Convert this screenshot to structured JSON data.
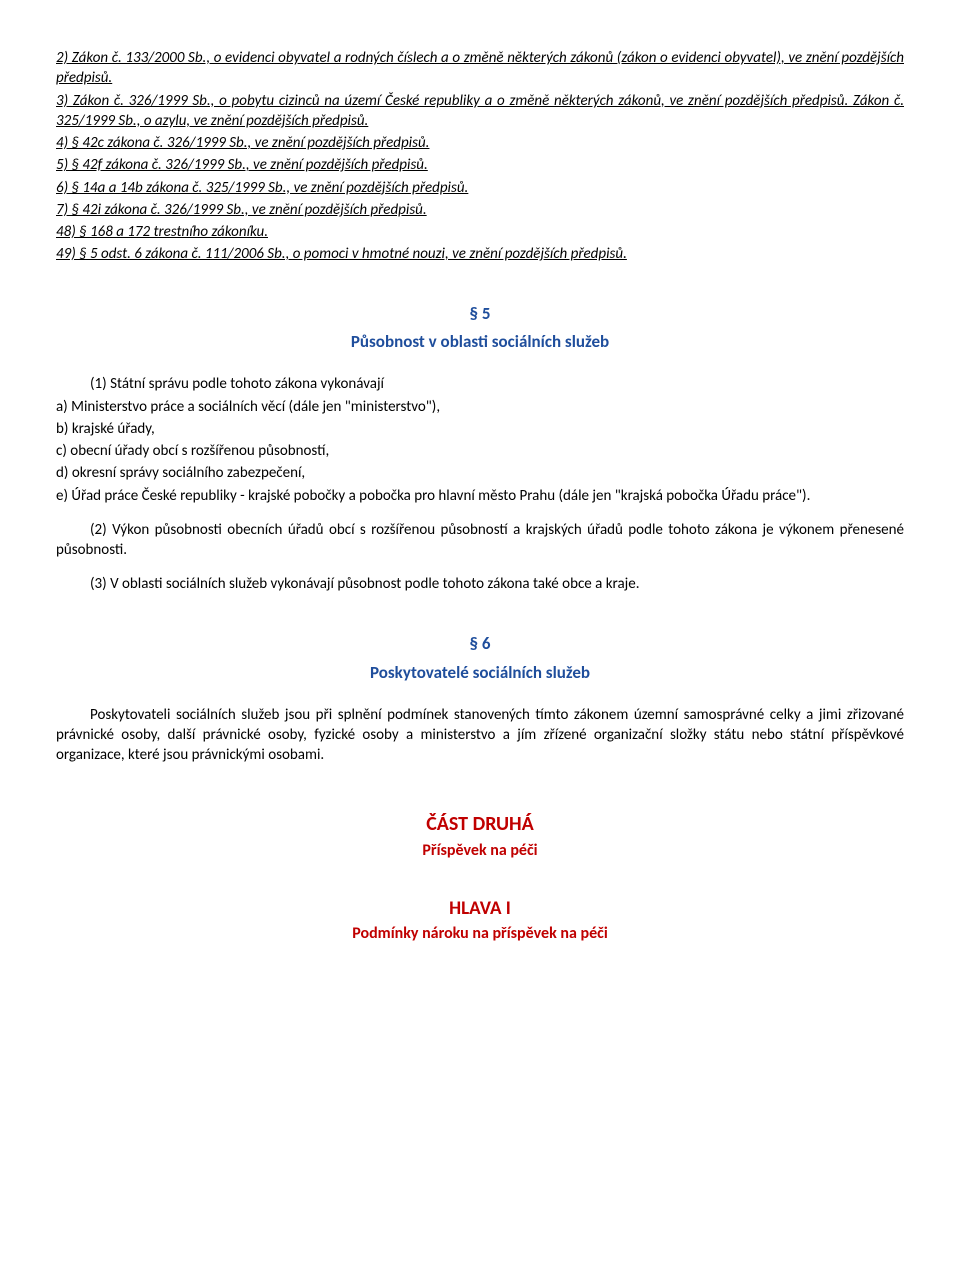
{
  "footnotes": [
    "2) Zákon č. 133/2000 Sb., o evidenci obyvatel a rodných číslech a o změně některých zákonů (zákon o evidenci obyvatel), ve znění pozdějších předpisů.",
    "3) Zákon č. 326/1999 Sb., o pobytu cizinců na území České republiky a o změně některých zákonů, ve znění pozdějších předpisů. Zákon č. 325/1999 Sb., o azylu, ve znění pozdějších předpisů.",
    "4) § 42c zákona č. 326/1999 Sb., ve znění pozdějších předpisů.",
    "5) § 42f zákona č. 326/1999 Sb., ve znění pozdějších předpisů.",
    "6) § 14a a 14b zákona č. 325/1999 Sb., ve znění pozdějších předpisů.",
    "7) § 42i zákona č. 326/1999 Sb., ve znění pozdějších předpisů.",
    "48) § 168 a 172 trestního zákoníku.",
    "49) § 5 odst. 6 zákona č. 111/2006 Sb., o pomoci v hmotné nouzi, ve znění pozdějších předpisů."
  ],
  "s5": {
    "num": "§ 5",
    "title": "Působnost v oblasti sociálních služeb",
    "p1_lead": "(1) Státní správu podle tohoto zákona vykonávají",
    "p1_items": [
      "a) Ministerstvo práce a sociálních věcí (dále jen \"ministerstvo\"),",
      "b) krajské úřady,",
      "c) obecní úřady obcí s rozšířenou působností,",
      "d) okresní správy sociálního zabezpečení,",
      "e) Úřad práce České republiky - krajské pobočky a pobočka pro hlavní město Prahu (dále jen \"krajská pobočka Úřadu práce\")."
    ],
    "p2": "(2) Výkon působnosti obecních úřadů obcí s rozšířenou působností a krajských úřadů podle tohoto zákona je výkonem přenesené působnosti.",
    "p3": "(3) V oblasti sociálních služeb vykonávají působnost podle tohoto zákona také obce a kraje."
  },
  "s6": {
    "num": "§ 6",
    "title": "Poskytovatelé sociálních služeb",
    "p1": "Poskytovateli sociálních služeb jsou při splnění podmínek stanovených tímto zákonem územní samosprávné celky a jimi zřizované právnické osoby, další právnické osoby, fyzické osoby a ministerstvo a jím zřízené organizační složky státu nebo státní příspěvkové organizace, které jsou právnickými osobami."
  },
  "part2": {
    "title": "ČÁST DRUHÁ",
    "sub": "Příspěvek na péči"
  },
  "hlava1": {
    "title": "HLAVA I",
    "sub": "Podmínky nároku na příspěvek na péči"
  }
}
